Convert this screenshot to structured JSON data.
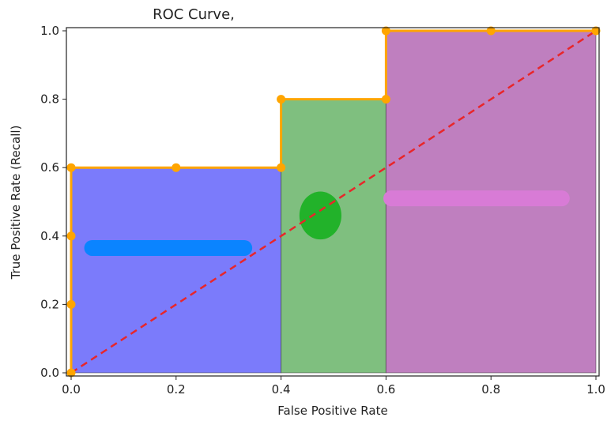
{
  "chart_data": {
    "type": "line",
    "title": "ROC Curve,",
    "xlabel": "False Positive Rate",
    "ylabel": "True Positive Rate (Recall)",
    "xlim": [
      0.0,
      1.0
    ],
    "ylim": [
      0.0,
      1.0
    ],
    "x_ticks": [
      "0.0",
      "0.2",
      "0.4",
      "0.6",
      "0.8",
      "1.0"
    ],
    "y_ticks": [
      "0.0",
      "0.2",
      "0.4",
      "0.6",
      "0.8",
      "1.0"
    ],
    "grid": false,
    "legend": "none",
    "roc_points": [
      {
        "x": 0.0,
        "y": 0.0
      },
      {
        "x": 0.0,
        "y": 0.2
      },
      {
        "x": 0.0,
        "y": 0.4
      },
      {
        "x": 0.0,
        "y": 0.6
      },
      {
        "x": 0.2,
        "y": 0.6
      },
      {
        "x": 0.4,
        "y": 0.6
      },
      {
        "x": 0.4,
        "y": 0.8
      },
      {
        "x": 0.6,
        "y": 0.8
      },
      {
        "x": 0.6,
        "y": 1.0
      },
      {
        "x": 0.8,
        "y": 1.0
      },
      {
        "x": 1.0,
        "y": 1.0
      }
    ],
    "curve_color": "#FFA500",
    "diagonal": {
      "from": [
        0,
        0
      ],
      "to": [
        1,
        1
      ],
      "color": "#E8262A",
      "style": "dashed"
    },
    "regions": [
      {
        "x_start": 0.0,
        "x_end": 0.4,
        "height": 0.6,
        "color": "#7B7BFB"
      },
      {
        "x_start": 0.4,
        "x_end": 0.6,
        "height": 0.8,
        "color": "#7FBF7F"
      },
      {
        "x_start": 0.6,
        "x_end": 1.0,
        "height": 1.0,
        "color": "#BF7FBF"
      }
    ],
    "annotation_strokes": [
      {
        "shape": "line",
        "x_from": 0.04,
        "x_to": 0.33,
        "y": 0.365,
        "color": "#0A84FF"
      },
      {
        "shape": "blob",
        "x_center": 0.475,
        "y_center": 0.46,
        "x_radius": 0.04,
        "y_radius": 0.07,
        "color": "#22B22A"
      },
      {
        "shape": "line",
        "x_from": 0.61,
        "x_to": 0.935,
        "y": 0.51,
        "color": "#D87BD6"
      }
    ]
  }
}
